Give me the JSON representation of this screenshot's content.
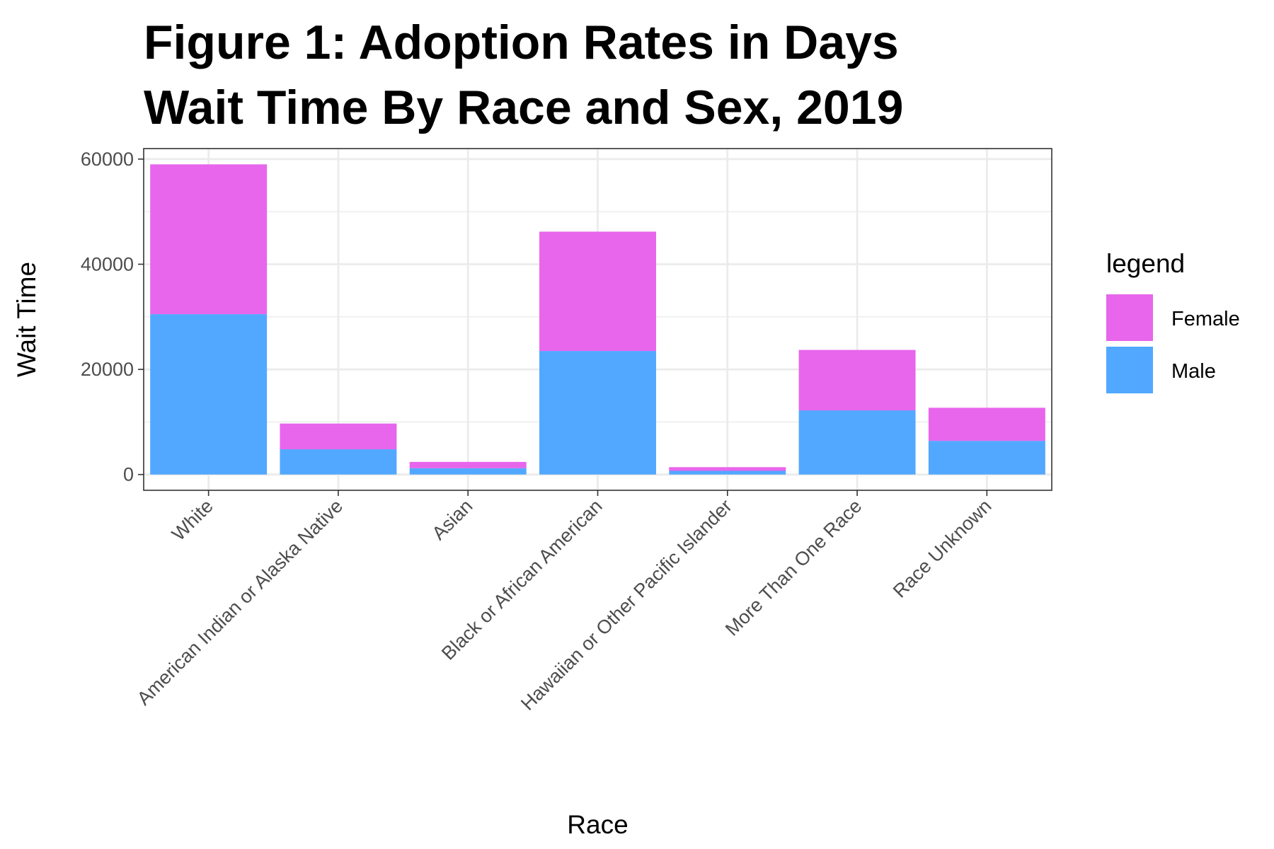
{
  "chart_data": {
    "type": "bar",
    "stacked": true,
    "title": [
      "Figure 1: Adoption Rates in Days",
      "Wait Time By Race and Sex, 2019"
    ],
    "xlabel": "Race",
    "ylabel": "Wait Time",
    "ylim": [
      -3000,
      62000
    ],
    "yticks": [
      0,
      20000,
      40000,
      60000
    ],
    "ytick_labels": [
      "0",
      "20000",
      "40000",
      "60000"
    ],
    "grid": true,
    "legend": {
      "title": "legend",
      "position": "right"
    },
    "categories": [
      "White",
      "American Indian or Alaska Native",
      "Asian",
      "Black or African American",
      "Hawaiian or Other Pacific Islander",
      "More Than One Race",
      "Race Unknown"
    ],
    "series": [
      {
        "name": "Male",
        "color": "#52a8ff",
        "values": [
          30500,
          4800,
          1200,
          23500,
          700,
          12200,
          6400
        ]
      },
      {
        "name": "Female",
        "color": "#e766eb",
        "values": [
          28500,
          4900,
          1200,
          22700,
          700,
          11500,
          6300
        ]
      }
    ],
    "legend_order": [
      "Female",
      "Male"
    ]
  }
}
